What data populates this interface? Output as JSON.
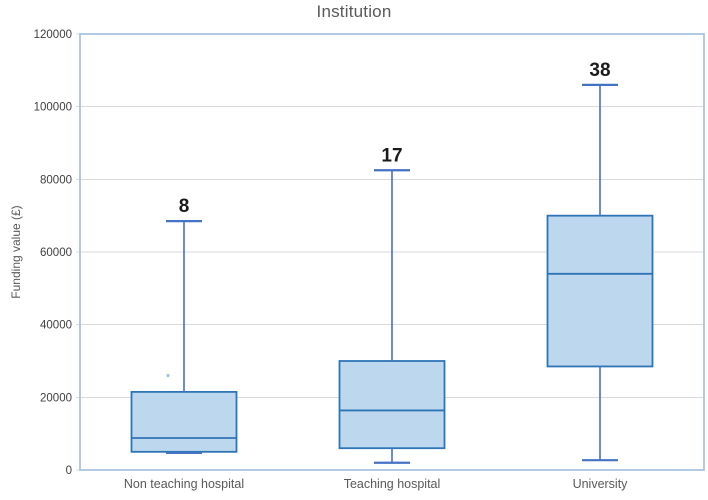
{
  "chart_data": {
    "type": "boxplot",
    "title": "Institution",
    "ylabel": "Funding value (£)",
    "xlabel": "",
    "ylim": [
      0,
      120000
    ],
    "ytick_step": 20000,
    "yticks": [
      0,
      20000,
      40000,
      60000,
      80000,
      100000,
      120000
    ],
    "grid": true,
    "legend": "none",
    "categories": [
      "Non teaching hospital",
      "Teaching hospital",
      "University"
    ],
    "boxes": [
      {
        "category": "Non teaching hospital",
        "n_label": "8",
        "whisker_high": 68500,
        "q3": 21500,
        "median": 8800,
        "q1": 5000,
        "whisker_low": 4700,
        "points": [
          26000
        ]
      },
      {
        "category": "Teaching hospital",
        "n_label": "17",
        "whisker_high": 82500,
        "q3": 30000,
        "median": 16400,
        "q1": 6000,
        "whisker_low": 2000,
        "points": []
      },
      {
        "category": "University",
        "n_label": "38",
        "whisker_high": 106000,
        "q3": 70000,
        "median": 54000,
        "q1": 28500,
        "whisker_low": 2700,
        "points": []
      }
    ],
    "colors": {
      "box_fill": "#BDD7EE",
      "box_stroke": "#2E75B6",
      "median": "#2E75B6",
      "whisker": "#4472C4",
      "point": "#9DC3E6",
      "gridline": "#D9D9D9",
      "plot_border": "#A9C4E0",
      "title_text": "#595959",
      "axis_text": "#404040",
      "category_text": "#595959",
      "n_label_text": "#1a1a1a"
    }
  }
}
